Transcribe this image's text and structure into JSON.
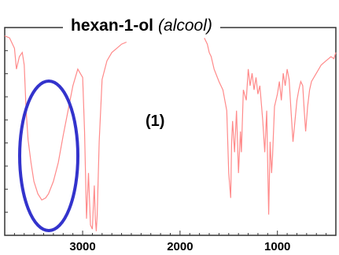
{
  "chart_data": {
    "type": "line",
    "title": "hexan-1-ol",
    "subtitle": "(alcool)",
    "annotation": "(1)",
    "xlabel": "",
    "ylabel": "",
    "xlim": [
      3800,
      400
    ],
    "ylim": [
      0,
      100
    ],
    "x_ticks": [
      3000,
      2000,
      1000
    ],
    "series_color": "#ff8a8a",
    "highlight_color": "#3333cc",
    "grid": false,
    "series": [
      {
        "x": [
          3800,
          3750,
          3700,
          3680,
          3650,
          3620,
          3600,
          3580,
          3560,
          3530,
          3500,
          3460,
          3420,
          3380,
          3350,
          3300,
          3250,
          3200,
          3150,
          3100,
          3050,
          3000,
          2980,
          2960,
          2940,
          2920,
          2900,
          2880,
          2870,
          2860,
          2850,
          2830,
          2800,
          2750,
          2700,
          2650,
          2600,
          2550
        ],
        "y": [
          96,
          95,
          90,
          80,
          86,
          88,
          82,
          60,
          46,
          35,
          26,
          20,
          17,
          18,
          20,
          26,
          35,
          48,
          60,
          72,
          80,
          76,
          50,
          8,
          30,
          5,
          3,
          24,
          8,
          2,
          10,
          45,
          75,
          84,
          88,
          90,
          92,
          93
        ]
      },
      {
        "x": [
          1750,
          1720,
          1700,
          1680,
          1650,
          1600,
          1560,
          1520,
          1500,
          1480,
          1470,
          1460,
          1440,
          1420,
          1400,
          1380,
          1370,
          1350,
          1320,
          1300,
          1280,
          1260,
          1240,
          1220,
          1200,
          1180,
          1150,
          1130,
          1110,
          1100,
          1090,
          1075,
          1060,
          1050,
          1030,
          1000,
          980,
          960,
          940,
          920,
          900,
          880,
          860,
          840,
          820,
          800,
          780,
          760,
          740,
          725,
          710,
          690,
          670,
          650,
          600,
          550,
          500,
          450,
          420,
          400
        ],
        "y": [
          95,
          92,
          88,
          86,
          80,
          74,
          70,
          60,
          30,
          18,
          45,
          55,
          40,
          60,
          30,
          50,
          40,
          70,
          65,
          80,
          72,
          78,
          70,
          76,
          68,
          72,
          55,
          40,
          60,
          35,
          10,
          45,
          30,
          38,
          62,
          68,
          74,
          65,
          78,
          72,
          80,
          75,
          60,
          45,
          55,
          65,
          70,
          74,
          72,
          60,
          50,
          62,
          70,
          74,
          78,
          82,
          84,
          86,
          85,
          88
        ]
      }
    ]
  }
}
